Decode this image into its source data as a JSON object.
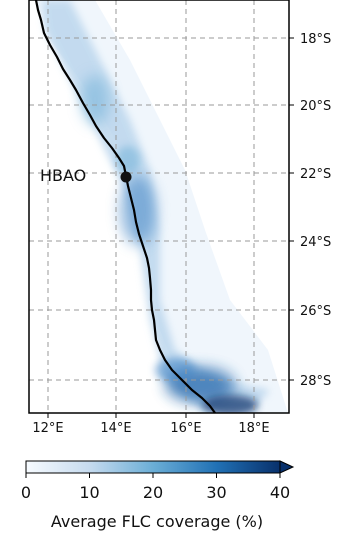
{
  "map": {
    "lat_labels": [
      "18°S",
      "20°S",
      "22°S",
      "24°S",
      "26°S",
      "28°S"
    ],
    "lon_labels": [
      "12°E",
      "14°E",
      "16°E",
      "18°E"
    ],
    "station": {
      "label": "HBAO",
      "lon": 14.2,
      "lat": -22.0
    },
    "extent": {
      "lon": [
        11.5,
        19.5
      ],
      "lat": [
        -29.0,
        -17.0
      ]
    },
    "grid": true,
    "coastline_color": "#000000"
  },
  "colorbar": {
    "label": "Average FLC coverage (%)",
    "ticks": [
      "0",
      "10",
      "20",
      "30",
      "40"
    ],
    "range": [
      0,
      40
    ],
    "extend": "max",
    "colors": [
      "#f7fbff",
      "#c6dbef",
      "#6baed6",
      "#2171b5",
      "#08306b"
    ]
  }
}
